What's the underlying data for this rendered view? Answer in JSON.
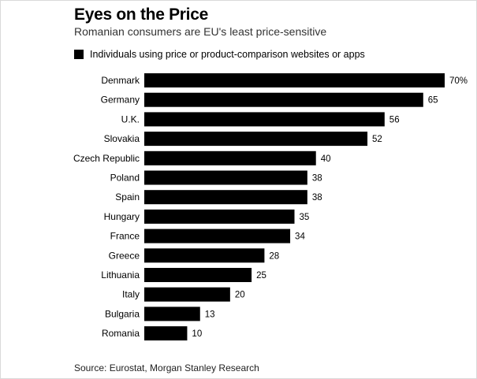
{
  "title": "Eyes on the Price",
  "subtitle": "Romanian consumers are EU's least price-sensitive",
  "source": "Source: Eurostat, Morgan Stanley Research",
  "chart_data": {
    "type": "bar",
    "orientation": "horizontal",
    "title": "Eyes on the Price",
    "subtitle": "Romanian consumers are EU's least price-sensitive",
    "legend_position": "top-left",
    "grid": false,
    "categories": [
      "Denmark",
      "Germany",
      "U.K.",
      "Slovakia",
      "Czech Republic",
      "Poland",
      "Spain",
      "Hungary",
      "France",
      "Greece",
      "Lithuania",
      "Italy",
      "Bulgaria",
      "Romania"
    ],
    "series": [
      {
        "name": "Individuals using price or product-comparison websites or apps",
        "values": [
          70,
          65,
          56,
          52,
          40,
          38,
          38,
          35,
          34,
          28,
          25,
          20,
          13,
          10
        ],
        "labels": [
          "70%",
          "65",
          "56",
          "52",
          "40",
          "38",
          "38",
          "35",
          "34",
          "28",
          "25",
          "20",
          "13",
          "10"
        ],
        "color": "#000000"
      }
    ],
    "xlim": [
      0,
      70
    ]
  }
}
